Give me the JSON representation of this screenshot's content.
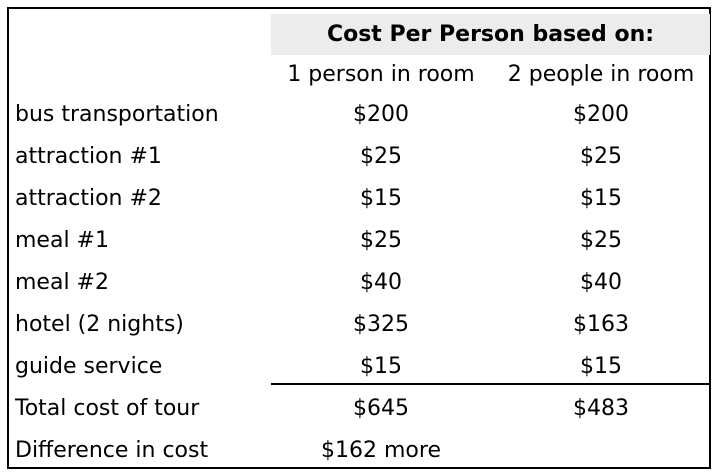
{
  "table": {
    "group_header": "Cost Per Person based on:",
    "col1_header": "1 person in room",
    "col2_header": "2 people in room",
    "rows": [
      {
        "label": "bus transportation",
        "col1": "$200",
        "col2": "$200"
      },
      {
        "label": "attraction #1",
        "col1": "$25",
        "col2": "$25"
      },
      {
        "label": "attraction #2",
        "col1": "$15",
        "col2": "$15"
      },
      {
        "label": "meal #1",
        "col1": "$25",
        "col2": "$25"
      },
      {
        "label": "meal #2",
        "col1": "$40",
        "col2": "$40"
      },
      {
        "label": "hotel (2 nights)",
        "col1": "$325",
        "col2": "$163"
      },
      {
        "label": "guide service",
        "col1": "$15",
        "col2": "$15"
      },
      {
        "label": "Total cost of tour",
        "col1": "$645",
        "col2": "$483"
      },
      {
        "label": "Difference in cost",
        "col1": "$162 more",
        "col2": ""
      }
    ]
  },
  "colors": {
    "header_band": "#ececec",
    "border": "#000000",
    "text": "#000000"
  }
}
